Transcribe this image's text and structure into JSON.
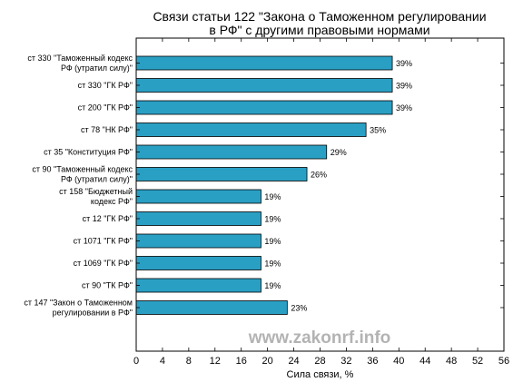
{
  "chart_data": {
    "type": "bar",
    "orientation": "horizontal",
    "title": [
      "Связи статьи 122 \"Закона о Таможенном регулировании",
      "в РФ\" с другими правовыми нормами"
    ],
    "xlabel": "Сила связи, %",
    "ylabel": "",
    "xlim": [
      0,
      56
    ],
    "xticks": [
      "0",
      "4",
      "8",
      "12",
      "16",
      "20",
      "24",
      "28",
      "32",
      "36",
      "40",
      "44",
      "48",
      "52",
      "56"
    ],
    "grid": false,
    "bar_color": "#2a9fc4",
    "categories": [
      [
        "ст 330 \"Таможенный кодекс",
        "РФ (утратил силу)\""
      ],
      [
        "ст 330 \"ГК РФ\""
      ],
      [
        "ст 200 \"ГК РФ\""
      ],
      [
        "ст 78 \"НК РФ\""
      ],
      [
        "ст 35 \"Конституция РФ\""
      ],
      [
        "ст 90 \"Таможенный кодекс",
        "РФ (утратил силу)\""
      ],
      [
        "ст 158 \"Бюджетный",
        "кодекс РФ\""
      ],
      [
        "ст 12 \"ГК РФ\""
      ],
      [
        "ст 1071 \"ГК РФ\""
      ],
      [
        "ст 1069 \"ГК РФ\""
      ],
      [
        "ст 90 \"ТК РФ\""
      ],
      [
        "ст 147 \"Закон о Таможенном",
        "регулировании в РФ\""
      ]
    ],
    "values": [
      39,
      39,
      39,
      35,
      29,
      26,
      19,
      19,
      19,
      19,
      19,
      23
    ],
    "value_labels": [
      "39%",
      "39%",
      "39%",
      "35%",
      "29%",
      "26%",
      "19%",
      "19%",
      "19%",
      "19%",
      "19%",
      "23%"
    ]
  },
  "watermark": "www.zakonrf.info"
}
